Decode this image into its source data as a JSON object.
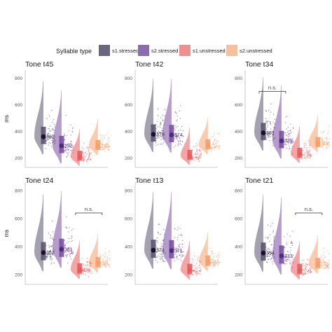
{
  "legend": {
    "title": "Syllable type",
    "entries": [
      {
        "label": "s1.stressed",
        "color": "#6b6680"
      },
      {
        "label": "s2.stressed",
        "color": "#8d6bb0"
      },
      {
        "label": "s1.unstressed",
        "color": "#ef8f8f"
      },
      {
        "label": "s2.unstressed",
        "color": "#f7c09a"
      }
    ]
  },
  "chart_data": {
    "type": "violin-raincloud",
    "ylabel": "ms",
    "yticks": [
      200,
      400,
      600,
      800
    ],
    "ylim": [
      130,
      860
    ],
    "categories": [
      "s1.stressed",
      "s2.stressed",
      "s1.unstressed",
      "s2.unstressed"
    ],
    "series_colors": [
      "#5a5470",
      "#7a4fa3",
      "#e85c5c",
      "#f6a06b"
    ],
    "label_colors": [
      "#1b1030",
      "#4a2a7a",
      "#f07a7a",
      "#f7b184"
    ],
    "panels": [
      {
        "title": "Tone t45",
        "medians": [
          360,
          292,
          210,
          290
        ],
        "labels": [
          "360",
          "292",
          "",
          "290"
        ],
        "ns": null
      },
      {
        "title": "Tone t42",
        "medians": [
          378,
          374,
          216,
          296
        ],
        "labels": [
          "378",
          "374",
          "",
          ""
        ],
        "ns": null
      },
      {
        "title": "Tone t34",
        "medians": [
          389,
          329,
          232,
          312
        ],
        "labels": [
          "389",
          "329",
          "",
          "312"
        ],
        "ns": {
          "label": "n.s.",
          "from": 0,
          "to": 1,
          "y": 700
        }
      },
      {
        "title": "Tone t24",
        "medians": [
          357,
          381,
          236,
          281
        ],
        "labels": [
          "357",
          "381",
          "236",
          "281"
        ],
        "ns": {
          "label": "n.s.",
          "from": 2,
          "to": 3,
          "y": 640
        }
      },
      {
        "title": "Tone t13",
        "medians": [
          374,
          371,
          232,
          292
        ],
        "labels": [
          "374",
          "371",
          "",
          "292"
        ],
        "ns": null
      },
      {
        "title": "Tone t21",
        "medians": [
          354,
          333,
          232,
          274
        ],
        "labels": [
          "354",
          "333",
          "",
          "274"
        ],
        "ns": {
          "label": "n.s.",
          "from": 2,
          "to": 3,
          "y": 640
        }
      }
    ]
  }
}
